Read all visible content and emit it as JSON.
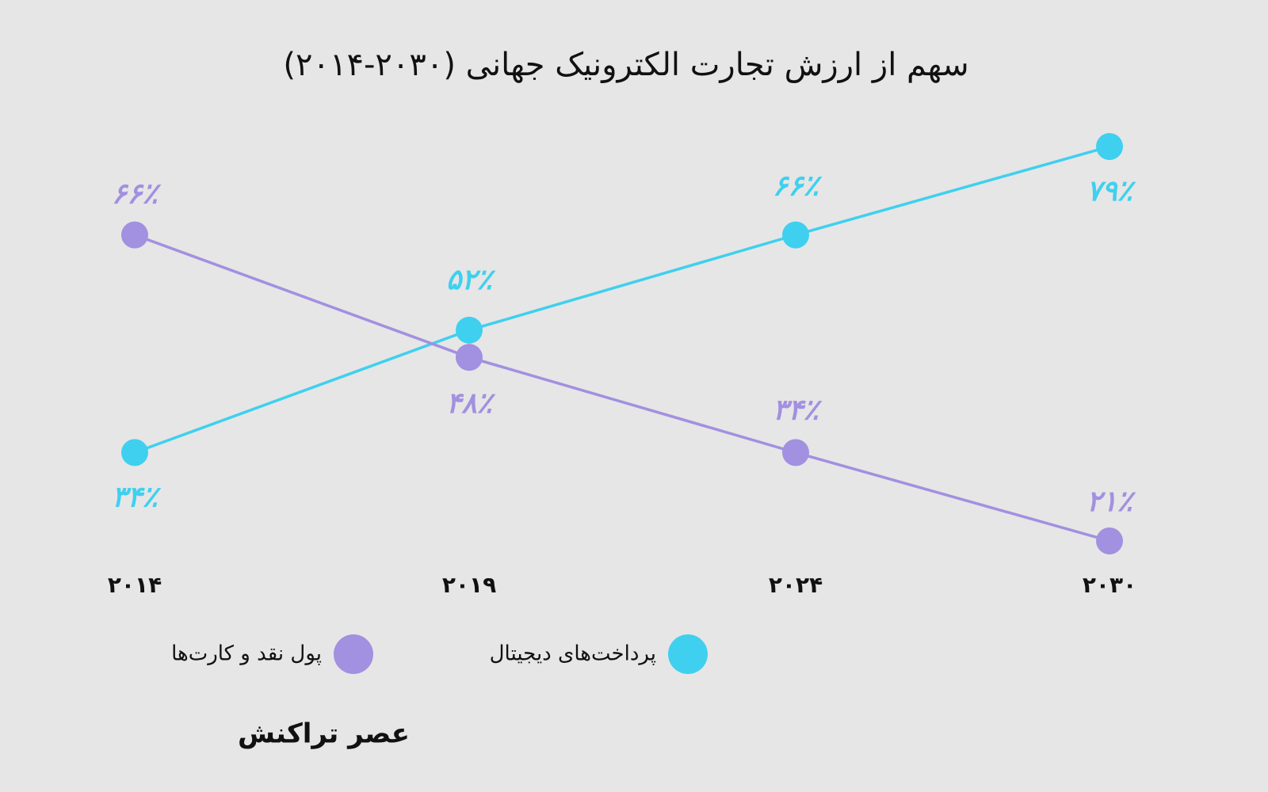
{
  "chart_data": {
    "type": "line",
    "title": "سهم از ارزش تجارت الکترونیک جهانی (۲۰۳۰-۲۰۱۴)",
    "categories": [
      "۲۰۱۴",
      "۲۰۱۹",
      "۲۰۲۴",
      "۲۰۳۰"
    ],
    "series": [
      {
        "name": "پرداخت‌های دیجیتال",
        "color": "#3fd0ef",
        "values": [
          34,
          52,
          66,
          79
        ],
        "value_labels": [
          "۳۴٪",
          "۵۲٪",
          "۶۶٪",
          "۷۹٪"
        ]
      },
      {
        "name": "پول نقد و کارت‌ها",
        "color": "#a290e0",
        "values": [
          66,
          48,
          34,
          21
        ],
        "value_labels": [
          "۶۶٪",
          "۴۸٪",
          "۳۴٪",
          "۲۱٪"
        ]
      }
    ]
  },
  "brand": "عصر تراکنش"
}
